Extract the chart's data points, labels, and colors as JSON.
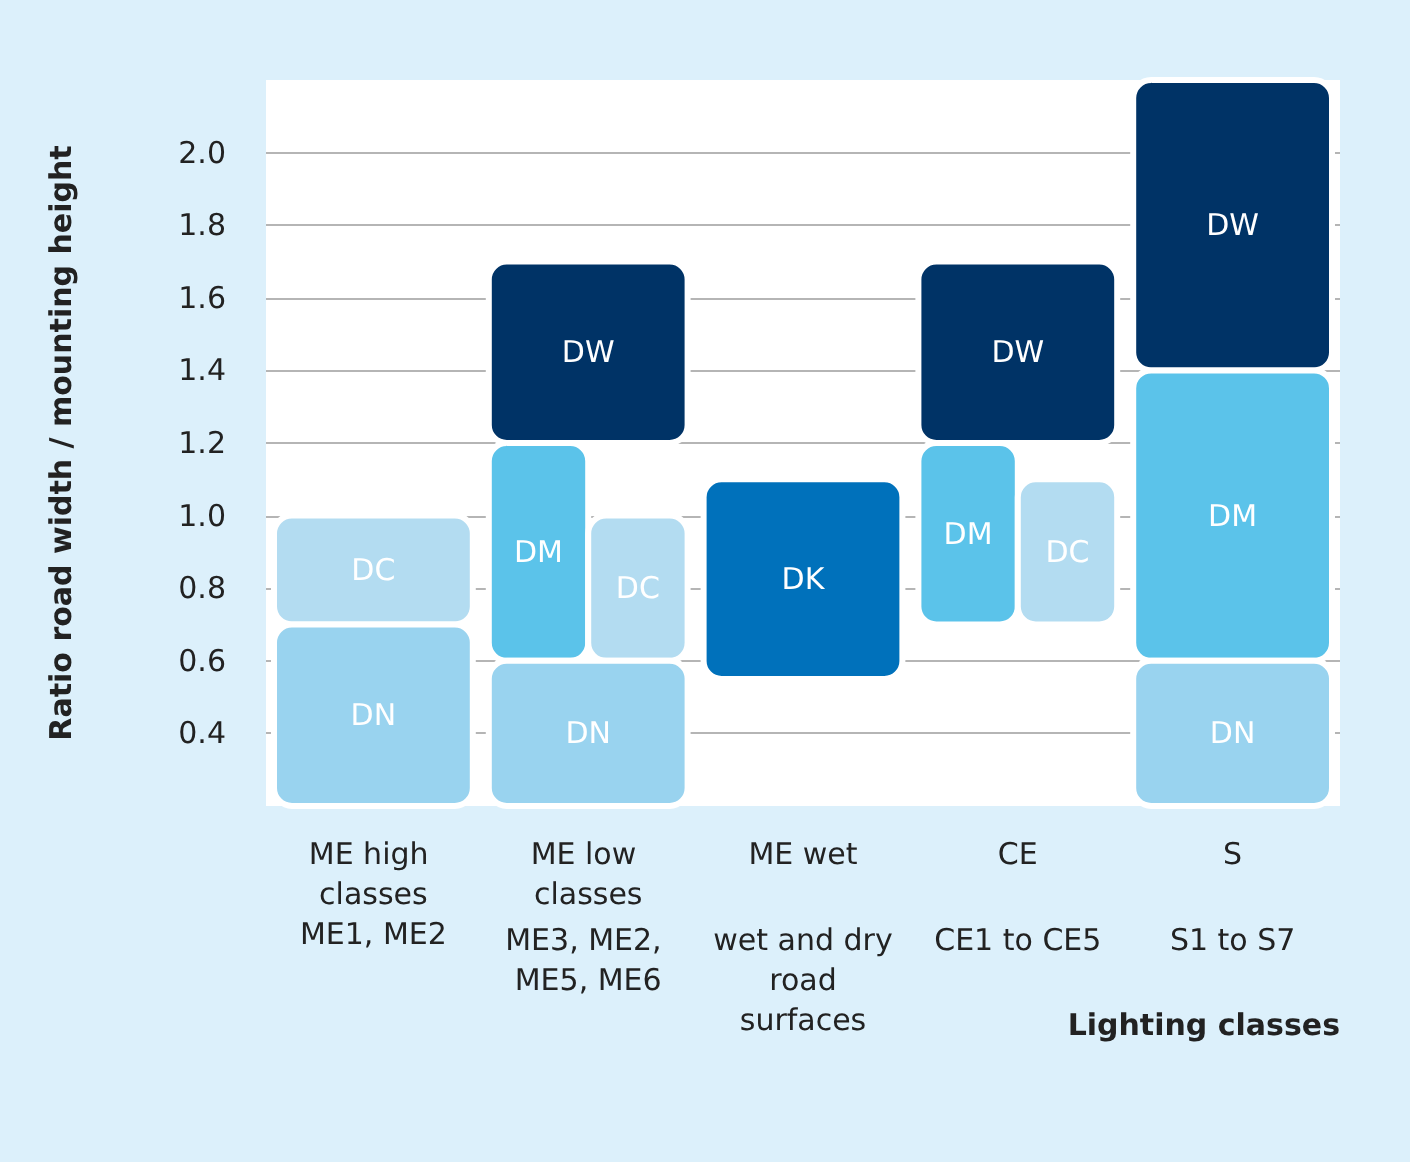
{
  "chart_data": {
    "type": "bar",
    "ylabel": "Ratio road width / mounting height",
    "xlabel": "Lighting classes",
    "categories": [
      "ME high classes",
      "ME low classes",
      "ME wet",
      "CE",
      "S"
    ],
    "annotations": [
      "ME1, ME2",
      "ME3, ME2, ME5, ME6",
      "wet and dry road surfaces",
      "CE1 to CE5",
      "S1 to S7"
    ],
    "series": [
      {
        "name": "DW",
        "color": "#003366",
        "values": [
          null,
          0.5,
          null,
          0.5,
          0.8
        ],
        "base": [
          null,
          1.2,
          null,
          1.2,
          1.4
        ]
      },
      {
        "name": "DM",
        "color": "#5bc3ea",
        "values": [
          null,
          0.6,
          null,
          0.5,
          0.8
        ],
        "base": [
          null,
          0.6,
          null,
          0.7,
          0.6
        ]
      },
      {
        "name": "DC",
        "color": "#b3dcf1",
        "values": [
          0.3,
          0.4,
          null,
          0.4,
          null
        ],
        "base": [
          0.7,
          0.6,
          null,
          0.7,
          null
        ]
      },
      {
        "name": "DN",
        "color": "#99d3ef",
        "values": [
          0.5,
          0.4,
          null,
          null,
          0.4
        ],
        "base": [
          0.2,
          0.2,
          null,
          null,
          0.2
        ]
      },
      {
        "name": "DK",
        "color": "#0071bb",
        "values": [
          null,
          null,
          0.55,
          null,
          null
        ],
        "base": [
          null,
          null,
          0.55,
          null,
          null
        ]
      }
    ],
    "ylim": [
      0.2,
      2.2
    ],
    "yticks": [
      {
        "value": 0.4,
        "label": "0.4"
      },
      {
        "value": 0.6,
        "label": "0.6"
      },
      {
        "value": 0.8,
        "label": "0.8"
      },
      {
        "value": 1,
        "label": "1.0"
      },
      {
        "value": 1.2,
        "label": "1.2"
      },
      {
        "value": 1.4,
        "label": "1.4"
      },
      {
        "value": 1.6,
        "label": "1.6"
      },
      {
        "value": 1.8,
        "label": "1.8"
      },
      {
        "value": 2,
        "label": "2.0"
      }
    ],
    "grid": "y"
  }
}
